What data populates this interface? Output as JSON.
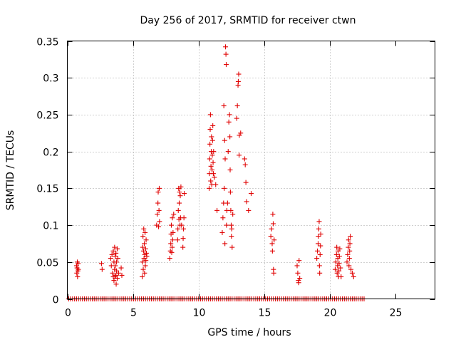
{
  "chart_data": {
    "type": "scatter",
    "title": "Day 256 of 2017, SRMTID for receiver ctwn",
    "xlabel": "GPS time / hours",
    "ylabel": "SRMTID / TECUs",
    "xlim": [
      0,
      28
    ],
    "ylim": [
      0,
      0.35
    ],
    "xticks": [
      0,
      5,
      10,
      15,
      20,
      25
    ],
    "yticks": [
      0,
      0.05,
      0.1,
      0.15,
      0.2,
      0.25,
      0.3,
      0.35
    ],
    "xtick_labels": [
      "0",
      "5",
      "10",
      "15",
      "20",
      "25"
    ],
    "ytick_labels": [
      "0",
      "0.05",
      "0.1",
      "0.15",
      "0.2",
      "0.25",
      "0.3",
      "0.35"
    ],
    "grid": true,
    "marker": "+",
    "color": "#e00000",
    "series": [
      {
        "name": "SRMTID",
        "x": [
          0.7,
          0.72,
          0.74,
          0.76,
          0.78,
          0.8,
          0.82,
          0.84,
          2.6,
          2.65,
          3.3,
          3.35,
          3.4,
          3.45,
          3.5,
          3.5,
          3.55,
          3.55,
          3.6,
          3.6,
          3.62,
          3.65,
          3.65,
          3.7,
          3.7,
          3.72,
          3.75,
          3.75,
          3.8,
          3.8,
          3.85,
          3.9,
          4.1,
          4.15,
          5.7,
          5.72,
          5.74,
          5.76,
          5.78,
          5.8,
          5.82,
          5.84,
          5.86,
          5.88,
          5.9,
          5.92,
          5.94,
          5.96,
          5.98,
          6.0,
          6.02,
          6.05,
          6.8,
          6.85,
          6.9,
          6.92,
          6.95,
          6.98,
          7.0,
          7.02,
          7.8,
          7.85,
          7.88,
          7.9,
          7.92,
          7.95,
          7.98,
          8.0,
          8.02,
          8.05,
          8.1,
          8.4,
          8.42,
          8.45,
          8.48,
          8.5,
          8.52,
          8.55,
          8.58,
          8.6,
          8.62,
          8.65,
          8.7,
          8.8,
          8.82,
          8.85,
          8.88,
          8.9,
          10.8,
          10.82,
          10.84,
          10.86,
          10.88,
          10.9,
          10.92,
          10.94,
          10.96,
          10.98,
          11.0,
          11.02,
          11.04,
          11.06,
          11.08,
          11.1,
          11.12,
          11.14,
          11.2,
          11.3,
          11.4,
          11.8,
          11.85,
          11.9,
          11.92,
          11.95,
          11.98,
          12.0,
          12.02,
          12.05,
          12.08,
          12.1,
          12.12,
          12.15,
          12.2,
          12.25,
          12.3,
          12.35,
          12.38,
          12.4,
          12.42,
          12.45,
          12.48,
          12.5,
          12.52,
          12.55,
          12.6,
          12.9,
          12.95,
          13.0,
          13.02,
          13.05,
          13.08,
          13.1,
          13.2,
          13.5,
          13.55,
          13.6,
          13.65,
          13.8,
          14.0,
          15.5,
          15.55,
          15.6,
          15.62,
          15.65,
          15.68,
          15.7,
          15.72,
          15.75,
          17.5,
          17.55,
          17.6,
          17.62,
          17.65,
          17.7,
          19.0,
          19.05,
          19.1,
          19.12,
          19.15,
          19.18,
          19.2,
          19.22,
          19.25,
          19.28,
          19.3,
          20.4,
          20.45,
          20.5,
          20.52,
          20.55,
          20.58,
          20.6,
          20.62,
          20.65,
          20.68,
          20.7,
          20.72,
          20.75,
          20.8,
          20.85,
          21.3,
          21.35,
          21.4,
          21.42,
          21.45,
          21.48,
          21.5,
          21.52,
          21.55,
          21.6,
          21.7,
          21.8
        ],
        "y": [
          0.045,
          0.035,
          0.042,
          0.05,
          0.03,
          0.038,
          0.048,
          0.04,
          0.048,
          0.04,
          0.055,
          0.045,
          0.06,
          0.035,
          0.03,
          0.065,
          0.05,
          0.025,
          0.04,
          0.07,
          0.03,
          0.045,
          0.058,
          0.032,
          0.062,
          0.02,
          0.038,
          0.05,
          0.028,
          0.068,
          0.055,
          0.035,
          0.042,
          0.032,
          0.03,
          0.05,
          0.07,
          0.085,
          0.04,
          0.065,
          0.095,
          0.055,
          0.075,
          0.035,
          0.06,
          0.09,
          0.045,
          0.068,
          0.052,
          0.08,
          0.062,
          0.058,
          0.1,
          0.115,
          0.13,
          0.145,
          0.098,
          0.12,
          0.15,
          0.105,
          0.055,
          0.065,
          0.075,
          0.088,
          0.1,
          0.063,
          0.07,
          0.11,
          0.08,
          0.09,
          0.115,
          0.08,
          0.095,
          0.12,
          0.15,
          0.108,
          0.13,
          0.145,
          0.1,
          0.14,
          0.11,
          0.152,
          0.1,
          0.07,
          0.082,
          0.095,
          0.11,
          0.143,
          0.15,
          0.17,
          0.19,
          0.21,
          0.23,
          0.25,
          0.16,
          0.18,
          0.2,
          0.22,
          0.155,
          0.175,
          0.195,
          0.215,
          0.235,
          0.185,
          0.17,
          0.2,
          0.165,
          0.155,
          0.12,
          0.09,
          0.11,
          0.13,
          0.262,
          0.15,
          0.215,
          0.075,
          0.19,
          0.342,
          0.332,
          0.318,
          0.1,
          0.12,
          0.13,
          0.2,
          0.24,
          0.25,
          0.22,
          0.175,
          0.145,
          0.12,
          0.1,
          0.085,
          0.095,
          0.07,
          0.115,
          0.245,
          0.262,
          0.29,
          0.295,
          0.305,
          0.195,
          0.222,
          0.225,
          0.19,
          0.182,
          0.158,
          0.132,
          0.12,
          0.143,
          0.085,
          0.095,
          0.075,
          0.065,
          0.115,
          0.102,
          0.04,
          0.035,
          0.08,
          0.045,
          0.035,
          0.025,
          0.022,
          0.052,
          0.028,
          0.055,
          0.065,
          0.075,
          0.085,
          0.095,
          0.105,
          0.045,
          0.035,
          0.06,
          0.072,
          0.088,
          0.04,
          0.05,
          0.06,
          0.07,
          0.035,
          0.045,
          0.055,
          0.065,
          0.03,
          0.038,
          0.048,
          0.058,
          0.068,
          0.042,
          0.03,
          0.05,
          0.06,
          0.07,
          0.08,
          0.045,
          0.055,
          0.065,
          0.075,
          0.085,
          0.04,
          0.035,
          0.03
        ]
      },
      {
        "name": "SRMTID (zero)",
        "x_range": [
          0.1,
          22.7
        ],
        "x_step": 0.15,
        "y_value": 0
      }
    ]
  }
}
